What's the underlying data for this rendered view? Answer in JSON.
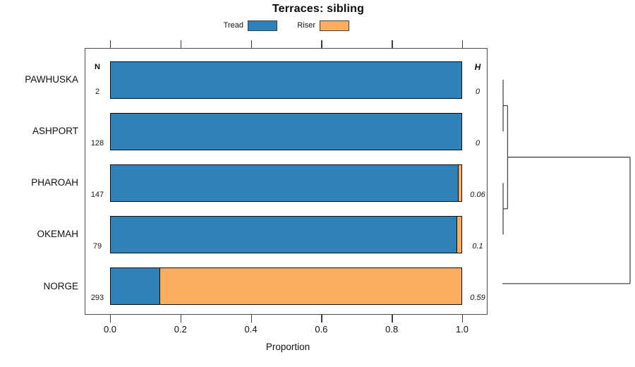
{
  "chart_data": {
    "type": "bar",
    "orientation": "horizontal-stacked",
    "title": "Terraces: sibling",
    "xlabel": "Proportion",
    "xlim": [
      0,
      1
    ],
    "xticks": [
      {
        "label": "0.0",
        "value": 0.0
      },
      {
        "label": "0.2",
        "value": 0.2
      },
      {
        "label": "0.4",
        "value": 0.4
      },
      {
        "label": "0.6",
        "value": 0.6
      },
      {
        "label": "0.8",
        "value": 0.8
      },
      {
        "label": "1.0",
        "value": 1.0
      }
    ],
    "categories": [
      "PAWHUSKA",
      "ASHPORT",
      "PHAROAH",
      "OKEMAH",
      "NORGE"
    ],
    "n_column": {
      "header": "N",
      "values": [
        "2",
        "128",
        "147",
        "79",
        "293"
      ]
    },
    "h_column": {
      "header": "H",
      "values": [
        "0",
        "0",
        "0.06",
        "0.1",
        "0.59"
      ]
    },
    "series": [
      {
        "name": "Tread",
        "color": "#2e82b8",
        "values": [
          1.0,
          1.0,
          0.991,
          0.987,
          0.144
        ]
      },
      {
        "name": "Riser",
        "color": "#fcad5f",
        "values": [
          0.0,
          0.0,
          0.009,
          0.013,
          0.856
        ]
      }
    ],
    "legend": [
      {
        "label": "Tread",
        "color": "#2e82b8"
      },
      {
        "label": "Riser",
        "color": "#fcad5f"
      }
    ],
    "legend_position": "top",
    "grid": false,
    "dendrogram": {
      "side": "right",
      "leaves": [
        "PAWHUSKA",
        "ASHPORT",
        "PHAROAH",
        "OKEMAH",
        "NORGE"
      ],
      "segments": [
        {
          "x1": 0.006,
          "y1": 0.0,
          "x2": 0.006,
          "y2": 1.0
        },
        {
          "x1": 0.006,
          "y1": 0.5,
          "x2": 0.041,
          "y2": 0.5
        },
        {
          "x1": 0.006,
          "y1": 2.0,
          "x2": 0.006,
          "y2": 3.0
        },
        {
          "x1": 0.006,
          "y1": 2.5,
          "x2": 0.041,
          "y2": 2.5
        },
        {
          "x1": 0.041,
          "y1": 0.5,
          "x2": 0.041,
          "y2": 2.5
        },
        {
          "x1": 0.041,
          "y1": 1.5,
          "x2": 1.0,
          "y2": 1.5
        },
        {
          "x1": 1.0,
          "y1": 1.5,
          "x2": 1.0,
          "y2": 3.95
        },
        {
          "x1": 0.0,
          "y1": 3.95,
          "x2": 1.0,
          "y2": 3.95
        }
      ]
    }
  },
  "colors": {
    "tread": "#2e82b8",
    "riser": "#fcad5f",
    "bar_border": "#0b0b0b",
    "frame": "#4d4d4d",
    "dendrogram_line": "#4a4a4a",
    "background": "#ffffff"
  }
}
